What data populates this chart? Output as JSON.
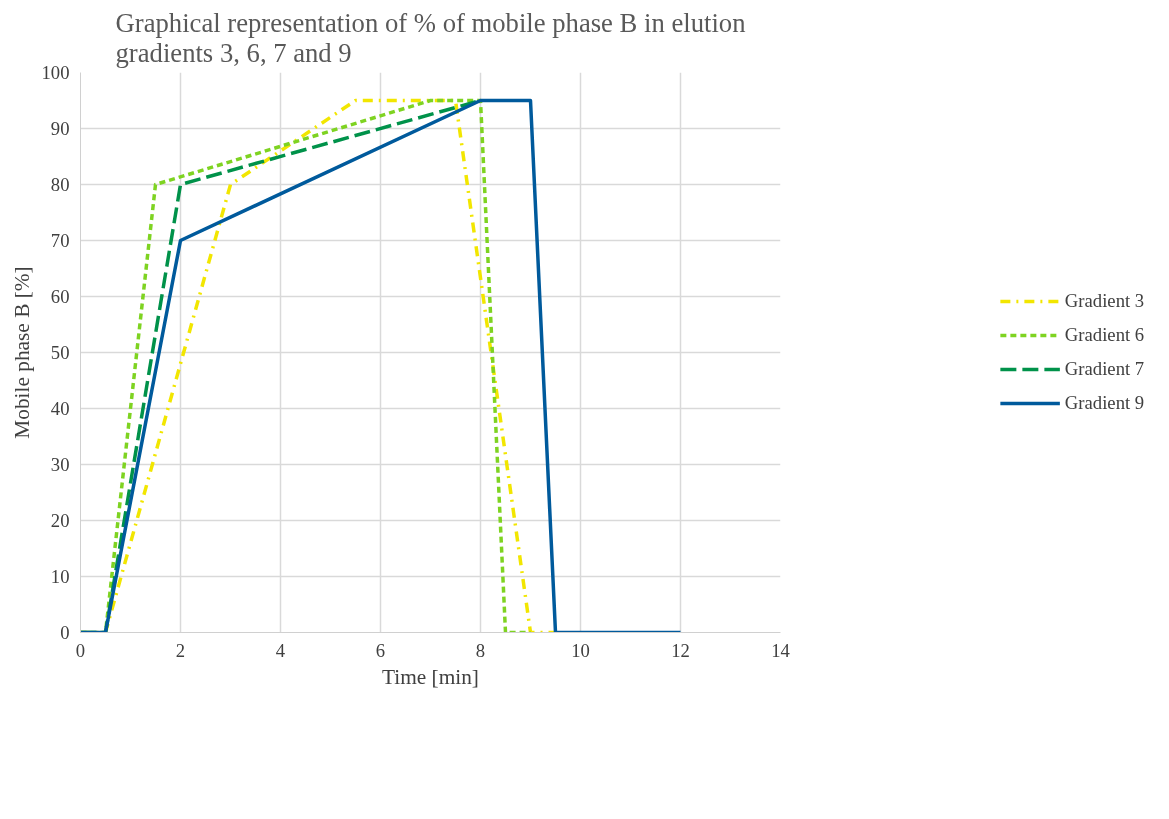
{
  "chart_data": {
    "type": "line",
    "title": "Graphical representation of % of mobile phase B in elution gradients 3, 6, 7 and 9",
    "xlabel": "Time [min]",
    "ylabel": "Mobile phase B [%]",
    "xlim": [
      0,
      14
    ],
    "xticks": [
      0,
      2,
      4,
      6,
      8,
      10,
      12,
      14
    ],
    "ylim": [
      0,
      100
    ],
    "yticks": [
      0,
      10,
      20,
      30,
      40,
      50,
      60,
      70,
      80,
      90,
      100
    ],
    "grid": true,
    "legend": "right",
    "marker": "none",
    "series": [
      {
        "name": "Gradient 3",
        "color": "#f2e600",
        "line_style": "dashdot",
        "x": [
          0,
          0.5,
          3,
          5.5,
          7.5,
          9,
          9.5
        ],
        "values": [
          0,
          0,
          80,
          95,
          95,
          0,
          0
        ]
      },
      {
        "name": "Gradient 6",
        "color": "#7ed321",
        "line_style": "dashed",
        "x": [
          0,
          0.5,
          1.5,
          7,
          8,
          8.5,
          9
        ],
        "values": [
          0,
          0,
          80,
          95,
          95,
          0,
          0
        ]
      },
      {
        "name": "Gradient 7",
        "color": "#00924a",
        "line_style": "longdash",
        "x": [
          0,
          0.5,
          2,
          8
        ],
        "values": [
          0,
          0,
          80,
          95
        ]
      },
      {
        "name": "Gradient 9",
        "color": "#005a9c",
        "line_style": "solid",
        "x": [
          0,
          0.5,
          2,
          8,
          9,
          9.5,
          12
        ],
        "values": [
          0,
          0,
          70,
          95,
          95,
          0,
          0
        ]
      }
    ]
  }
}
